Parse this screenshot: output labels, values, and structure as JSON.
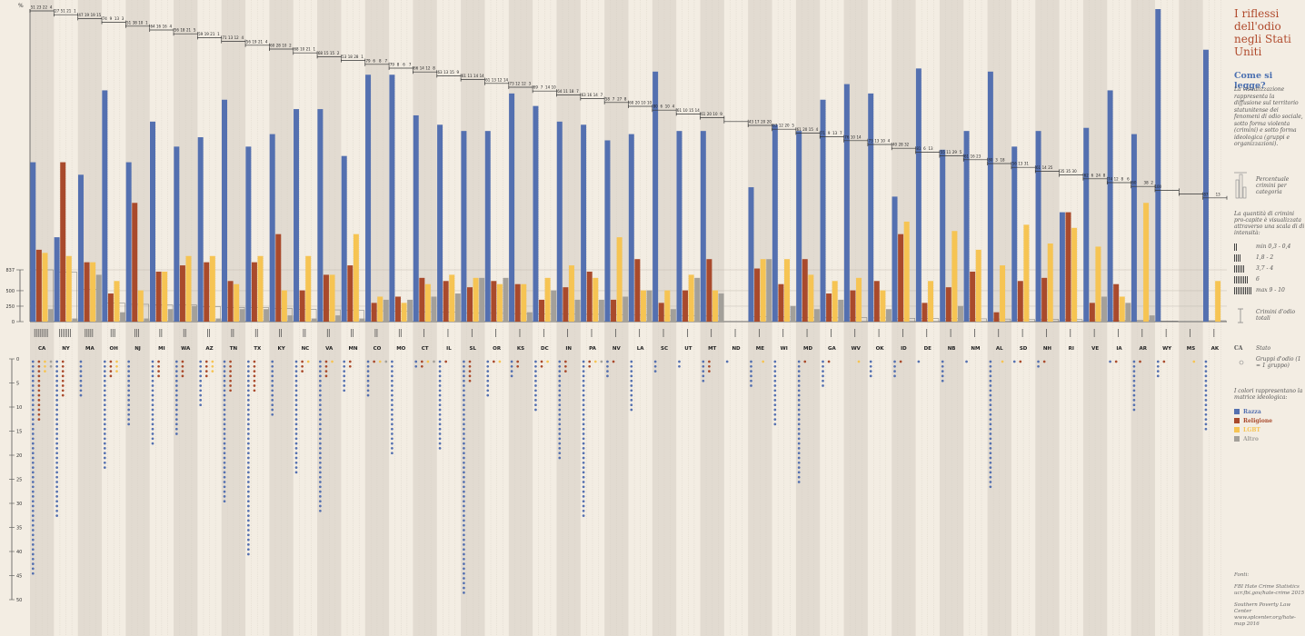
{
  "colors": {
    "race": "#5470b0",
    "religion": "#a94a2c",
    "lgbt": "#f6c453",
    "other": "#a3a09a",
    "bg": "#f3ede3",
    "stripe": "#e2dbd1",
    "title": "#b04a2c",
    "howto": "#4a6fb0"
  },
  "sidebar": {
    "title": "I riflessi dell'odio negli Stati Uniti",
    "howto_title": "Come si legge?",
    "description": "La visualizzazione rappresenta la diffusione sul territorio statunitense dei fenomeni di odio sociale, sotto forma violenta (crimini) e sotto forma ideologica (gruppi e organizzazioni).",
    "pct_legend": "Percentuale crimini per categoria",
    "intensity_intro": "La quantità di crimini pro-capite è visualizzata attraverso una scala di di intensità:",
    "intensity_levels": [
      "min 0,3 - 0,4",
      "1,8 - 2",
      "3,7 - 4",
      "6",
      "max 9 - 10"
    ],
    "total_crimes": "Crimini d'odio totali",
    "state_label_key": "CA",
    "state_label": "Stato",
    "groups_label": "Gruppi d'odio (1 = 1 gruppo)",
    "matrix_intro": "I colori rappresentano la matrice ideologica:",
    "categories": [
      "Razza",
      "Religione",
      "LGBT",
      "Altro"
    ],
    "sources_title": "Fonti:",
    "source_1": "FBI Hate Crime Statistics",
    "source_1_url": "ucr.fbi.gov/hate-crime 2015",
    "source_2": "Southern Poverty Law Center",
    "source_2_url": "www.splcenter.org/hate-map 2016"
  },
  "chart_data": {
    "type": "bar",
    "percent_axis_label": "%",
    "totals_axis_ticks": [
      837,
      500,
      250,
      0
    ],
    "groups_axis_ticks": [
      0,
      5,
      10,
      15,
      20,
      25,
      30,
      35,
      40,
      45,
      50
    ],
    "series_names": [
      "Razza",
      "Religione",
      "LGBT",
      "Altro"
    ],
    "states": [
      {
        "state": "CA",
        "pct": [
          51,
          23,
          22,
          4
        ],
        "total": 837,
        "groups": [
          45,
          13,
          3,
          2
        ]
      },
      {
        "state": "NY",
        "pct": [
          27,
          51,
          21,
          1
        ],
        "total": 800,
        "groups": [
          33,
          8,
          0,
          0
        ]
      },
      {
        "state": "MA",
        "pct": [
          47,
          19,
          19,
          15
        ],
        "total": 520,
        "groups": [
          8,
          0,
          0,
          0
        ]
      },
      {
        "state": "OH",
        "pct": [
          74,
          9,
          13,
          3
        ],
        "total": 300,
        "groups": [
          23,
          4,
          3,
          0
        ]
      },
      {
        "state": "NJ",
        "pct": [
          51,
          38,
          10,
          1
        ],
        "total": 280,
        "groups": [
          14,
          0,
          0,
          0
        ]
      },
      {
        "state": "MI",
        "pct": [
          64,
          16,
          16,
          4
        ],
        "total": 270,
        "groups": [
          18,
          4,
          0,
          0
        ]
      },
      {
        "state": "WA",
        "pct": [
          56,
          18,
          21,
          5
        ],
        "total": 270,
        "groups": [
          16,
          4,
          0,
          0
        ]
      },
      {
        "state": "AZ",
        "pct": [
          59,
          19,
          21,
          1
        ],
        "total": 240,
        "groups": [
          10,
          4,
          3,
          0
        ]
      },
      {
        "state": "TN",
        "pct": [
          71,
          13,
          12,
          4
        ],
        "total": 230,
        "groups": [
          30,
          7,
          0,
          0
        ]
      },
      {
        "state": "TX",
        "pct": [
          56,
          19,
          21,
          4
        ],
        "total": 230,
        "groups": [
          41,
          7,
          0,
          0
        ]
      },
      {
        "state": "KY",
        "pct": [
          60,
          28,
          10,
          2
        ],
        "total": 210,
        "groups": [
          12,
          0,
          0,
          0
        ]
      },
      {
        "state": "NC",
        "pct": [
          68,
          10,
          21,
          1
        ],
        "total": 200,
        "groups": [
          24,
          3,
          1,
          0
        ]
      },
      {
        "state": "VA",
        "pct": [
          68,
          15,
          15,
          2
        ],
        "total": 190,
        "groups": [
          32,
          4,
          1,
          0
        ]
      },
      {
        "state": "MN",
        "pct": [
          53,
          18,
          28,
          1
        ],
        "total": 180,
        "groups": [
          7,
          2,
          0,
          0
        ]
      },
      {
        "state": "CO",
        "pct": [
          79,
          6,
          8,
          7
        ],
        "total": 175,
        "groups": [
          8,
          1,
          1,
          1
        ]
      },
      {
        "state": "MO",
        "pct": [
          79,
          8,
          6,
          7
        ],
        "total": 170,
        "groups": [
          20,
          0,
          0,
          0
        ]
      },
      {
        "state": "CT",
        "pct": [
          66,
          14,
          12,
          8
        ],
        "total": 160,
        "groups": [
          2,
          2,
          1,
          1
        ]
      },
      {
        "state": "IL",
        "pct": [
          63,
          13,
          15,
          9
        ],
        "total": 150,
        "groups": [
          19,
          1,
          0,
          0
        ]
      },
      {
        "state": "SL",
        "pct": [
          61,
          11,
          14,
          14
        ],
        "total": 140,
        "groups": [
          49,
          5,
          0,
          0
        ]
      },
      {
        "state": "OR",
        "pct": [
          61,
          13,
          12,
          14
        ],
        "total": 135,
        "groups": [
          8,
          1,
          1,
          0
        ]
      },
      {
        "state": "KS",
        "pct": [
          73,
          12,
          12,
          3
        ],
        "total": 130,
        "groups": [
          4,
          2,
          0,
          0
        ]
      },
      {
        "state": "DC",
        "pct": [
          69,
          7,
          14,
          10
        ],
        "total": 125,
        "groups": [
          11,
          2,
          1,
          0
        ]
      },
      {
        "state": "IN",
        "pct": [
          64,
          11,
          18,
          7
        ],
        "total": 120,
        "groups": [
          21,
          3,
          0,
          0
        ]
      },
      {
        "state": "PA",
        "pct": [
          63,
          16,
          14,
          7
        ],
        "total": 118,
        "groups": [
          33,
          2,
          1,
          1
        ]
      },
      {
        "state": "NV",
        "pct": [
          58,
          7,
          27,
          8
        ],
        "total": 110,
        "groups": [
          4,
          1,
          0,
          0
        ]
      },
      {
        "state": "LA",
        "pct": [
          60,
          20,
          10,
          10
        ],
        "total": 105,
        "groups": [
          11,
          0,
          0,
          0
        ]
      },
      {
        "state": "SC",
        "pct": [
          80,
          6,
          10,
          4
        ],
        "total": 100,
        "groups": [
          3,
          0,
          0,
          0
        ]
      },
      {
        "state": "UT",
        "pct": [
          61,
          10,
          15,
          14
        ],
        "total": 95,
        "groups": [
          2,
          0,
          0,
          0
        ]
      },
      {
        "state": "MT",
        "pct": [
          61,
          20,
          10,
          9
        ],
        "total": 90,
        "groups": [
          5,
          3,
          0,
          0
        ]
      },
      {
        "state": "ND",
        "pct": [
          0,
          0,
          0,
          0
        ],
        "total": 5,
        "groups": [
          1,
          0,
          0,
          0
        ]
      },
      {
        "state": "ME",
        "pct": [
          43,
          17,
          20,
          20
        ],
        "total": 80,
        "groups": [
          6,
          0,
          1,
          0
        ]
      },
      {
        "state": "WI",
        "pct": [
          63,
          12,
          20,
          5
        ],
        "total": 75,
        "groups": [
          14,
          0,
          0,
          0
        ]
      },
      {
        "state": "MD",
        "pct": [
          61,
          20,
          15,
          4
        ],
        "total": 70,
        "groups": [
          26,
          1,
          0,
          0
        ]
      },
      {
        "state": "GA",
        "pct": [
          71,
          9,
          13,
          7
        ],
        "total": 68,
        "groups": [
          6,
          1,
          0,
          0
        ]
      },
      {
        "state": "WV",
        "pct": [
          76,
          10,
          14,
          0
        ],
        "total": 65,
        "groups": [
          0,
          0,
          1,
          0
        ]
      },
      {
        "state": "OK",
        "pct": [
          73,
          13,
          10,
          4
        ],
        "total": 60,
        "groups": [
          4,
          0,
          0,
          0
        ]
      },
      {
        "state": "ID",
        "pct": [
          40,
          28,
          32,
          0
        ],
        "total": 55,
        "groups": [
          4,
          1,
          0,
          0
        ]
      },
      {
        "state": "DE",
        "pct": [
          81,
          6,
          13,
          0
        ],
        "total": 50,
        "groups": [
          1,
          0,
          0,
          0
        ]
      },
      {
        "state": "NB",
        "pct": [
          55,
          11,
          29,
          5
        ],
        "total": 48,
        "groups": [
          5,
          0,
          0,
          0
        ]
      },
      {
        "state": "NM",
        "pct": [
          61,
          16,
          23,
          0
        ],
        "total": 45,
        "groups": [
          1,
          0,
          0,
          0
        ]
      },
      {
        "state": "AL",
        "pct": [
          80,
          3,
          18,
          0
        ],
        "total": 42,
        "groups": [
          27,
          0,
          1,
          0
        ]
      },
      {
        "state": "SD",
        "pct": [
          56,
          13,
          31,
          0
        ],
        "total": 40,
        "groups": [
          1,
          1,
          0,
          0
        ]
      },
      {
        "state": "NH",
        "pct": [
          61,
          14,
          25,
          0
        ],
        "total": 38,
        "groups": [
          2,
          1,
          0,
          0
        ]
      },
      {
        "state": "RI",
        "pct": [
          35,
          35,
          30,
          0
        ],
        "total": 35,
        "groups": [
          0,
          0,
          0,
          0
        ]
      },
      {
        "state": "VE",
        "pct": [
          62,
          6,
          24,
          8
        ],
        "total": 30,
        "groups": [
          0,
          0,
          0,
          0
        ]
      },
      {
        "state": "IA",
        "pct": [
          74,
          12,
          8,
          6
        ],
        "total": 25,
        "groups": [
          1,
          1,
          0,
          0
        ]
      },
      {
        "state": "AR",
        "pct": [
          60,
          0,
          38,
          2
        ],
        "total": 20,
        "groups": [
          11,
          1,
          0,
          0
        ]
      },
      {
        "state": "WY",
        "pct": [
          100,
          0,
          0,
          0
        ],
        "total": 10,
        "groups": [
          4,
          1,
          0,
          0
        ]
      },
      {
        "state": "MS",
        "pct": [
          0,
          0,
          0,
          0
        ],
        "total": 5,
        "groups": [
          0,
          0,
          1,
          0
        ]
      },
      {
        "state": "AK",
        "pct": [
          87,
          0,
          13,
          0
        ],
        "total": 15,
        "groups": [
          15,
          0,
          0,
          0
        ]
      }
    ]
  }
}
